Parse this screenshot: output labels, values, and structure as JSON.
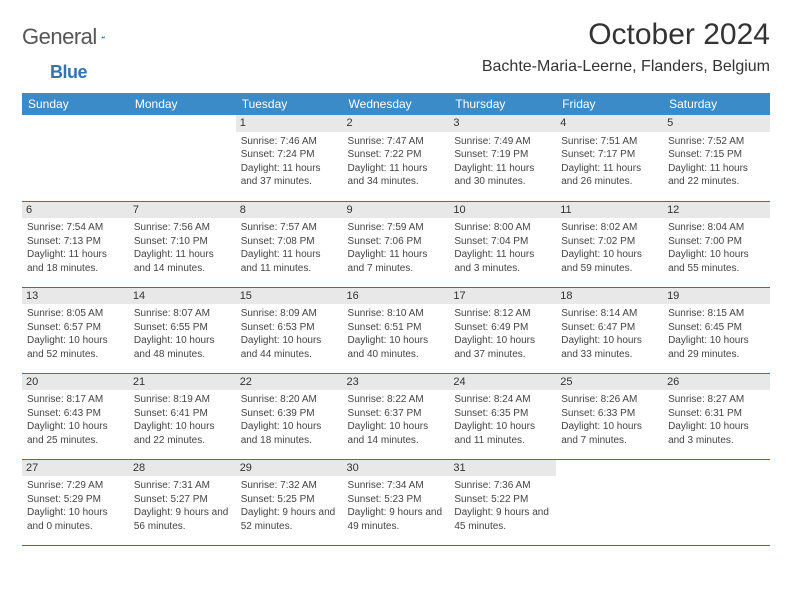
{
  "brand": {
    "part1": "General",
    "part2": "Blue"
  },
  "title": "October 2024",
  "location": "Bachte-Maria-Leerne, Flanders, Belgium",
  "colors": {
    "header_bg": "#3b8bc9",
    "header_text": "#ffffff",
    "border": "#2f75b5",
    "daynum_bg": "#e8e8e8",
    "text": "#444444",
    "brand_blue": "#2f75b5"
  },
  "day_headers": [
    "Sunday",
    "Monday",
    "Tuesday",
    "Wednesday",
    "Thursday",
    "Friday",
    "Saturday"
  ],
  "weeks": [
    [
      null,
      null,
      {
        "n": "1",
        "sunrise": "7:46 AM",
        "sunset": "7:24 PM",
        "dl_h": "11",
        "dl_m": "37"
      },
      {
        "n": "2",
        "sunrise": "7:47 AM",
        "sunset": "7:22 PM",
        "dl_h": "11",
        "dl_m": "34"
      },
      {
        "n": "3",
        "sunrise": "7:49 AM",
        "sunset": "7:19 PM",
        "dl_h": "11",
        "dl_m": "30"
      },
      {
        "n": "4",
        "sunrise": "7:51 AM",
        "sunset": "7:17 PM",
        "dl_h": "11",
        "dl_m": "26"
      },
      {
        "n": "5",
        "sunrise": "7:52 AM",
        "sunset": "7:15 PM",
        "dl_h": "11",
        "dl_m": "22"
      }
    ],
    [
      {
        "n": "6",
        "sunrise": "7:54 AM",
        "sunset": "7:13 PM",
        "dl_h": "11",
        "dl_m": "18"
      },
      {
        "n": "7",
        "sunrise": "7:56 AM",
        "sunset": "7:10 PM",
        "dl_h": "11",
        "dl_m": "14"
      },
      {
        "n": "8",
        "sunrise": "7:57 AM",
        "sunset": "7:08 PM",
        "dl_h": "11",
        "dl_m": "11"
      },
      {
        "n": "9",
        "sunrise": "7:59 AM",
        "sunset": "7:06 PM",
        "dl_h": "11",
        "dl_m": "7"
      },
      {
        "n": "10",
        "sunrise": "8:00 AM",
        "sunset": "7:04 PM",
        "dl_h": "11",
        "dl_m": "3"
      },
      {
        "n": "11",
        "sunrise": "8:02 AM",
        "sunset": "7:02 PM",
        "dl_h": "10",
        "dl_m": "59"
      },
      {
        "n": "12",
        "sunrise": "8:04 AM",
        "sunset": "7:00 PM",
        "dl_h": "10",
        "dl_m": "55"
      }
    ],
    [
      {
        "n": "13",
        "sunrise": "8:05 AM",
        "sunset": "6:57 PM",
        "dl_h": "10",
        "dl_m": "52"
      },
      {
        "n": "14",
        "sunrise": "8:07 AM",
        "sunset": "6:55 PM",
        "dl_h": "10",
        "dl_m": "48"
      },
      {
        "n": "15",
        "sunrise": "8:09 AM",
        "sunset": "6:53 PM",
        "dl_h": "10",
        "dl_m": "44"
      },
      {
        "n": "16",
        "sunrise": "8:10 AM",
        "sunset": "6:51 PM",
        "dl_h": "10",
        "dl_m": "40"
      },
      {
        "n": "17",
        "sunrise": "8:12 AM",
        "sunset": "6:49 PM",
        "dl_h": "10",
        "dl_m": "37"
      },
      {
        "n": "18",
        "sunrise": "8:14 AM",
        "sunset": "6:47 PM",
        "dl_h": "10",
        "dl_m": "33"
      },
      {
        "n": "19",
        "sunrise": "8:15 AM",
        "sunset": "6:45 PM",
        "dl_h": "10",
        "dl_m": "29"
      }
    ],
    [
      {
        "n": "20",
        "sunrise": "8:17 AM",
        "sunset": "6:43 PM",
        "dl_h": "10",
        "dl_m": "25"
      },
      {
        "n": "21",
        "sunrise": "8:19 AM",
        "sunset": "6:41 PM",
        "dl_h": "10",
        "dl_m": "22"
      },
      {
        "n": "22",
        "sunrise": "8:20 AM",
        "sunset": "6:39 PM",
        "dl_h": "10",
        "dl_m": "18"
      },
      {
        "n": "23",
        "sunrise": "8:22 AM",
        "sunset": "6:37 PM",
        "dl_h": "10",
        "dl_m": "14"
      },
      {
        "n": "24",
        "sunrise": "8:24 AM",
        "sunset": "6:35 PM",
        "dl_h": "10",
        "dl_m": "11"
      },
      {
        "n": "25",
        "sunrise": "8:26 AM",
        "sunset": "6:33 PM",
        "dl_h": "10",
        "dl_m": "7"
      },
      {
        "n": "26",
        "sunrise": "8:27 AM",
        "sunset": "6:31 PM",
        "dl_h": "10",
        "dl_m": "3"
      }
    ],
    [
      {
        "n": "27",
        "sunrise": "7:29 AM",
        "sunset": "5:29 PM",
        "dl_h": "10",
        "dl_m": "0"
      },
      {
        "n": "28",
        "sunrise": "7:31 AM",
        "sunset": "5:27 PM",
        "dl_h": "9",
        "dl_m": "56"
      },
      {
        "n": "29",
        "sunrise": "7:32 AM",
        "sunset": "5:25 PM",
        "dl_h": "9",
        "dl_m": "52"
      },
      {
        "n": "30",
        "sunrise": "7:34 AM",
        "sunset": "5:23 PM",
        "dl_h": "9",
        "dl_m": "49"
      },
      {
        "n": "31",
        "sunrise": "7:36 AM",
        "sunset": "5:22 PM",
        "dl_h": "9",
        "dl_m": "45"
      },
      null,
      null
    ]
  ],
  "labels": {
    "sunrise_prefix": "Sunrise: ",
    "sunset_prefix": "Sunset: ",
    "daylight_prefix": "Daylight: ",
    "hours_word": " hours and ",
    "minutes_word": " minutes."
  }
}
